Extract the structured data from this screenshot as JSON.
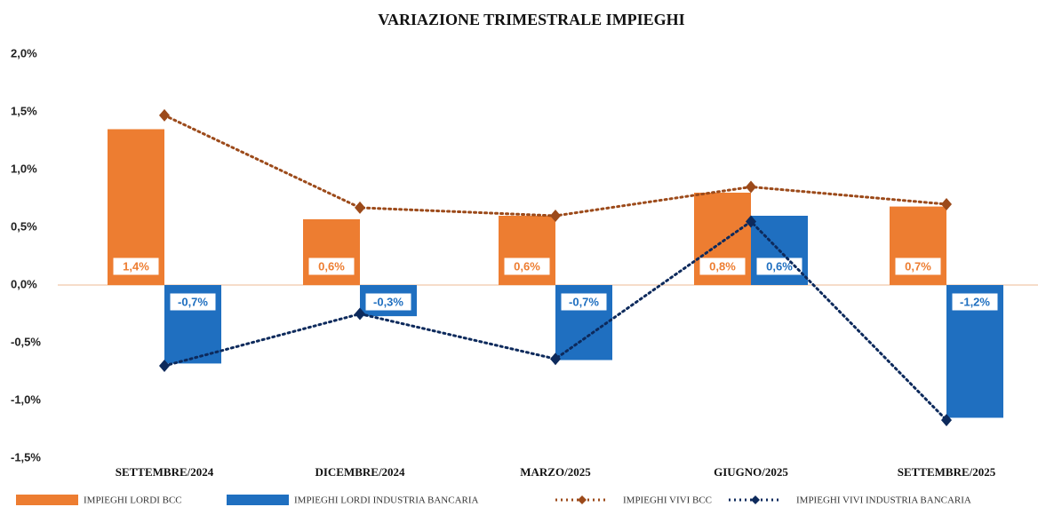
{
  "chart_data": {
    "type": "bar",
    "title": "VARIAZIONE TRIMESTRALE IMPIEGHI",
    "categories": [
      "SETTEMBRE/2024",
      "DICEMBRE/2024",
      "MARZO/2025",
      "GIUGNO/2025",
      "SETTEMBRE/2025"
    ],
    "ylim": [
      -1.5,
      2.0
    ],
    "yticks": [
      {
        "value": 2.0,
        "label": "2,0%"
      },
      {
        "value": 1.5,
        "label": "1,5%"
      },
      {
        "value": 1.0,
        "label": "1,0%"
      },
      {
        "value": 0.5,
        "label": "0,5%"
      },
      {
        "value": 0.0,
        "label": "0,0%"
      },
      {
        "value": -0.5,
        "label": "-0,5%"
      },
      {
        "value": -1.0,
        "label": "-1,0%"
      },
      {
        "value": -1.5,
        "label": "-1,5%"
      }
    ],
    "grid": false,
    "series": [
      {
        "name": "IMPIEGHI LORDI BCC",
        "type": "bar",
        "color": "#ed7d31",
        "values": [
          1.35,
          0.57,
          0.6,
          0.8,
          0.68
        ],
        "value_labels": [
          "1,4%",
          "0,6%",
          "0,6%",
          "0,8%",
          "0,7%"
        ]
      },
      {
        "name": "IMPIEGHI LORDI INDUSTRIA BANCARIA",
        "type": "bar",
        "color": "#1f6fc0",
        "values": [
          -0.68,
          -0.27,
          -0.65,
          0.6,
          -1.15
        ],
        "value_labels": [
          "-0,7%",
          "-0,3%",
          "-0,7%",
          "0,6%",
          "-1,2%"
        ]
      },
      {
        "name": "IMPIEGHI VIVI BCC",
        "type": "line",
        "color": "#9c4a1a",
        "values": [
          1.47,
          0.67,
          0.6,
          0.85,
          0.7
        ]
      },
      {
        "name": "IMPIEGHI VIVI INDUSTRIA BANCARIA",
        "type": "line",
        "color": "#0d2a5c",
        "values": [
          -0.7,
          -0.25,
          -0.64,
          0.55,
          -1.17
        ]
      }
    ]
  }
}
